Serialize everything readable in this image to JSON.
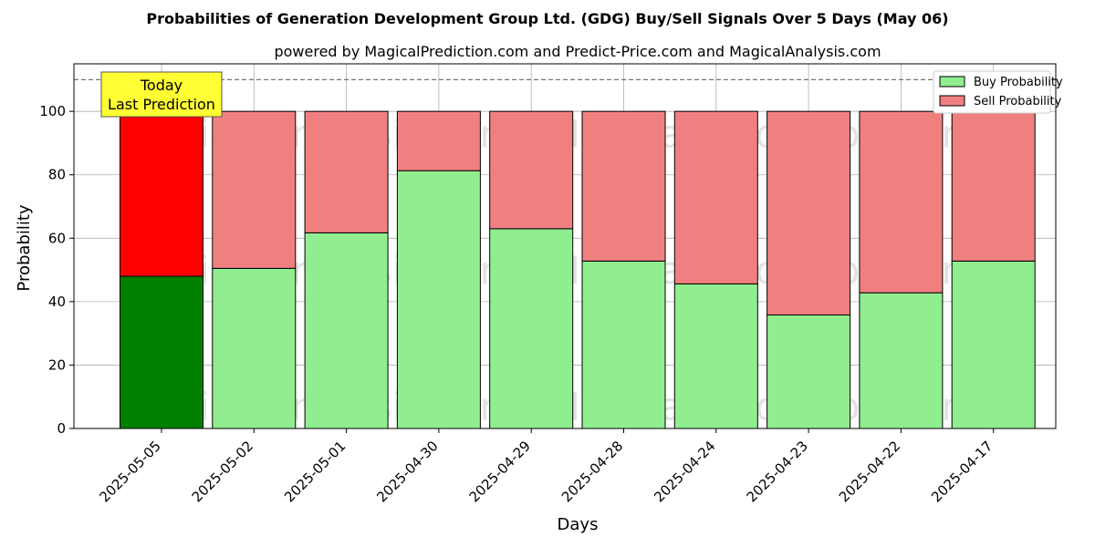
{
  "chart_data": {
    "type": "bar",
    "stacked": true,
    "title": "Probabilities of Generation Development Group Ltd. (GDG) Buy/Sell Signals Over 5 Days (May 06)",
    "subtitle": "powered by MagicalPrediction.com and Predict-Price.com and MagicalAnalysis.com",
    "xlabel": "Days",
    "ylabel": "Probability",
    "ylim": [
      0,
      115
    ],
    "yticks": [
      0,
      20,
      40,
      60,
      80,
      100
    ],
    "grid": true,
    "legend_placement": "top-right",
    "reference_line": 110,
    "categories": [
      "2025-05-05",
      "2025-05-02",
      "2025-05-01",
      "2025-04-30",
      "2025-04-29",
      "2025-04-28",
      "2025-04-24",
      "2025-04-23",
      "2025-04-22",
      "2025-04-17"
    ],
    "series": [
      {
        "name": "Buy Probability",
        "values": [
          48,
          50.5,
          61.7,
          81.3,
          63,
          52.8,
          45.6,
          35.8,
          42.8,
          52.8
        ],
        "color": "#90ee90",
        "highlight_color": "#008000"
      },
      {
        "name": "Sell Probability",
        "values": [
          52,
          49.5,
          38.3,
          18.7,
          37,
          47.2,
          54.4,
          64.2,
          57.2,
          47.2
        ],
        "color": "#f08080",
        "highlight_color": "#ff0000"
      }
    ],
    "highlight_index": 0,
    "annotation": {
      "lines": [
        "Today",
        "Last Prediction"
      ],
      "color": "#ffff33"
    },
    "watermarks": [
      "MagicalAnalysis.com",
      "MagicalPrediction.com"
    ]
  }
}
